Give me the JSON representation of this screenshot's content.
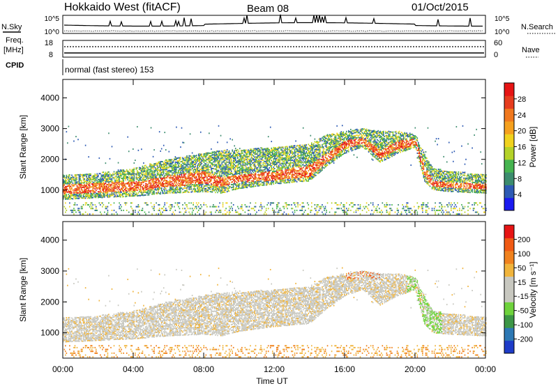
{
  "header": {
    "title": "Hokkaido West (fitACF)",
    "beam": "Beam 08",
    "date": "01/Oct/2015"
  },
  "top_panels": {
    "nsky": {
      "label": "N.Sky",
      "ticks_left": [
        "10^5",
        "10^0"
      ],
      "ticks_right": [
        "10^5",
        "10^0"
      ],
      "right_label": "N.Search"
    },
    "freq": {
      "label_line1": "Freq.",
      "label_line2": "[MHz]",
      "ticks_left": [
        "18",
        "8"
      ],
      "ticks_right": [
        "60",
        "0"
      ],
      "right_label": "Nave"
    },
    "cpid": {
      "label": "CPID",
      "value": "normal (fast stereo) 153"
    }
  },
  "chart_data": [
    {
      "type": "heatmap",
      "name": "power",
      "ylabel": "Slant Range [km]",
      "ylim": [
        180,
        4600
      ],
      "yticks": [
        "1000",
        "2000",
        "3000",
        "4000"
      ],
      "yticks_values": [
        1000,
        2000,
        3000,
        4000
      ],
      "colorbar": {
        "label": "Power [dB]",
        "ticks": [
          "4",
          "8",
          "12",
          "16",
          "20",
          "24",
          "28"
        ],
        "range": [
          0,
          32
        ],
        "colors": [
          "#1a1af0",
          "#2d5ab4",
          "#3c8c6e",
          "#46b450",
          "#b4d228",
          "#f0d21e",
          "#f5a01e",
          "#f0781e",
          "#e63c1e",
          "#e61414"
        ]
      },
      "bands": [
        {
          "t": [
            0,
            2,
            4,
            6,
            8,
            9,
            10,
            12,
            14,
            15,
            16,
            17,
            18,
            19,
            20,
            20.5,
            21,
            22,
            24
          ],
          "lo": [
            700,
            750,
            800,
            900,
            950,
            900,
            1050,
            1200,
            1300,
            1800,
            2200,
            2400,
            1900,
            2200,
            2400,
            1300,
            1000,
            950,
            900
          ],
          "hi": [
            1500,
            1550,
            1700,
            2000,
            2200,
            2300,
            2300,
            2400,
            2500,
            2800,
            2900,
            3000,
            2900,
            2900,
            2800,
            2200,
            1700,
            1600,
            1500
          ],
          "core_lo": [
            850,
            900,
            950,
            1100,
            1200,
            1100,
            1250,
            1300,
            1400,
            1900,
            2350,
            2500,
            2000,
            2300,
            2450,
            1450,
            1100,
            1050,
            1000
          ],
          "core_hi": [
            1150,
            1200,
            1250,
            1450,
            1600,
            1400,
            1500,
            1600,
            1800,
            2200,
            2600,
            2700,
            2300,
            2600,
            2650,
            1800,
            1300,
            1250,
            1200
          ]
        }
      ]
    },
    {
      "type": "heatmap",
      "name": "velocity",
      "xlabel": "Time UT",
      "ylabel": "Slant Range [km]",
      "ylim": [
        180,
        4600
      ],
      "yticks": [
        "1000",
        "2000",
        "3000",
        "4000"
      ],
      "yticks_values": [
        1000,
        2000,
        3000,
        4000
      ],
      "xticks": [
        "00:00",
        "04:00",
        "08:00",
        "12:00",
        "16:00",
        "20:00",
        "00:00"
      ],
      "xlim": [
        0,
        24
      ],
      "colorbar": {
        "label": "Velocity [m s⁻¹]",
        "ticks": [
          "200",
          "100",
          "50",
          "15",
          "-15",
          "-50",
          "-100",
          "-200"
        ],
        "range": [
          -250,
          250
        ],
        "colors": [
          "#1e3cc8",
          "#2d78b4",
          "#3c9646",
          "#6ed23c",
          "#c8c8c0",
          "#c8c8c0",
          "#f0b43c",
          "#f0821e",
          "#f05a14",
          "#e61414"
        ]
      }
    }
  ]
}
